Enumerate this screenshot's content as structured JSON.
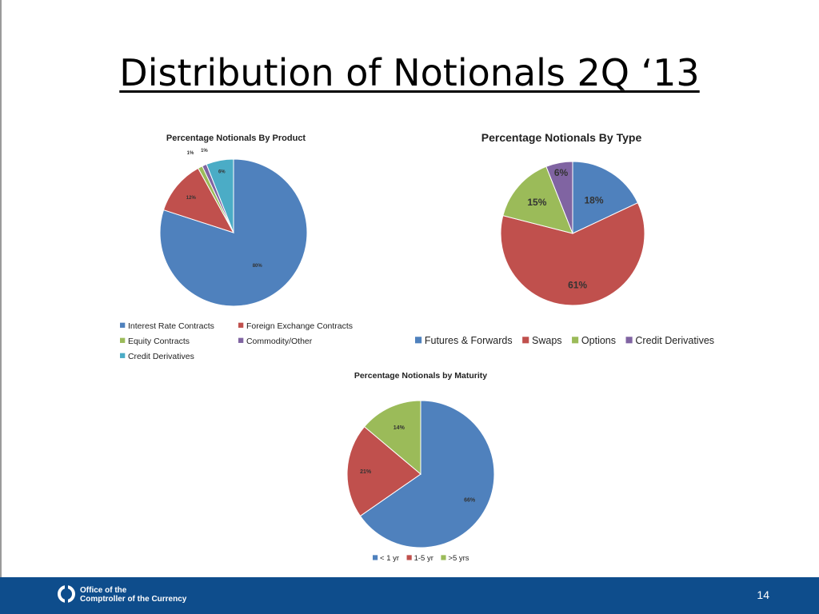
{
  "slide": {
    "title": "Distribution of  Notionals 2Q ‘13",
    "page_number": "14",
    "footer_org_line1": "Office of the",
    "footer_org_line2": "Comptroller of the Currency"
  },
  "chart_data": [
    {
      "type": "pie",
      "title": "Percentage Notionals By Product",
      "categories": [
        "Interest Rate Contracts",
        "Foreign Exchange Contracts",
        "Equity Contracts",
        "Commodity/Other",
        "Credit Derivatives"
      ],
      "values": [
        80,
        12,
        1,
        1,
        6
      ],
      "labels": [
        "80%",
        "12%",
        "1%",
        "1%",
        "6%"
      ],
      "colors": [
        "#4f81bd",
        "#c0504d",
        "#9bbb59",
        "#8064a2",
        "#4bacc6"
      ],
      "legend_position": "bottom"
    },
    {
      "type": "pie",
      "title": "Percentage Notionals By Type",
      "categories": [
        "Futures & Forwards",
        "Swaps",
        "Options",
        "Credit Derivatives"
      ],
      "values": [
        18,
        61,
        15,
        6
      ],
      "labels": [
        "18%",
        "61%",
        "15%",
        "6%"
      ],
      "colors": [
        "#4f81bd",
        "#c0504d",
        "#9bbb59",
        "#8064a2"
      ],
      "legend_position": "bottom"
    },
    {
      "type": "pie",
      "title": "Percentage Notionals by Maturity",
      "categories": [
        "< 1 yr",
        "1-5 yr",
        ">5 yrs"
      ],
      "values": [
        66,
        21,
        14
      ],
      "labels": [
        "66%",
        "21%",
        "14%"
      ],
      "colors": [
        "#4f81bd",
        "#c0504d",
        "#9bbb59"
      ],
      "legend_position": "bottom"
    }
  ]
}
